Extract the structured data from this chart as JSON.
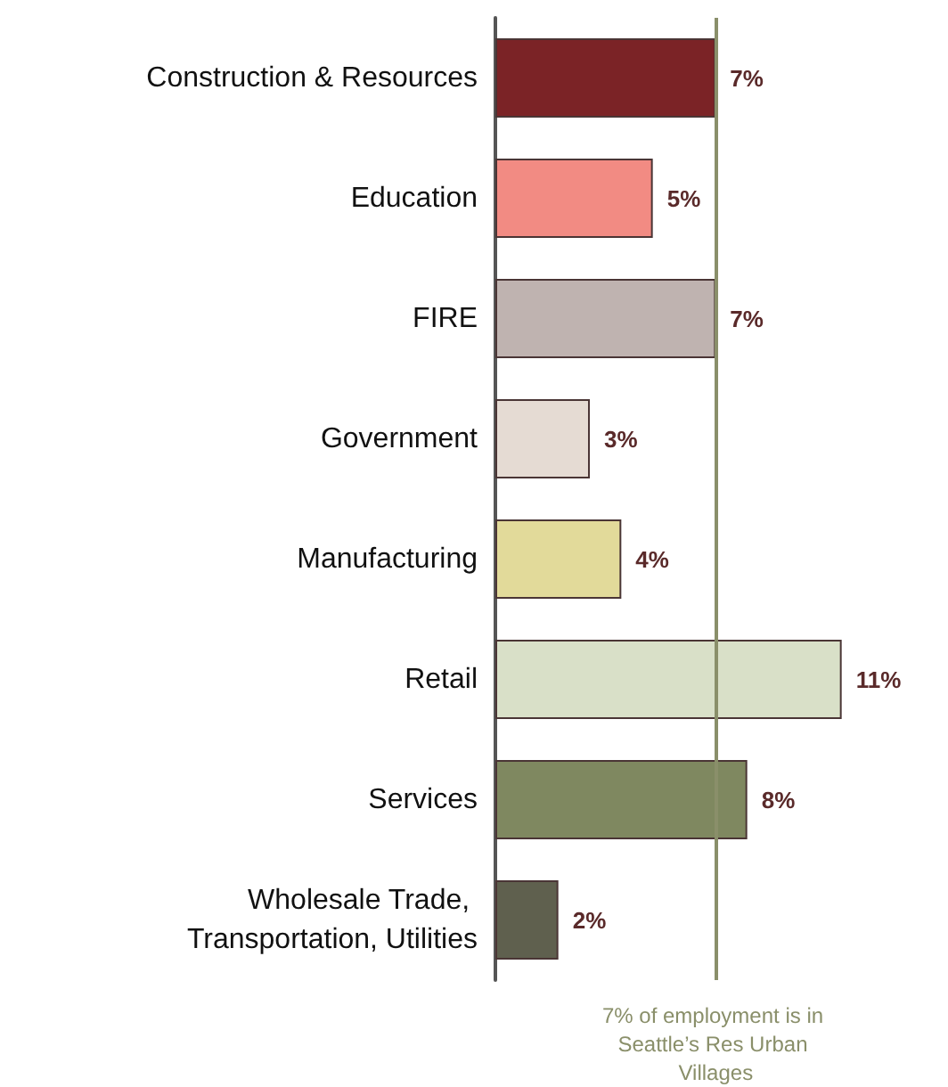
{
  "chart_data": {
    "type": "bar",
    "orientation": "horizontal",
    "categories": [
      "Construction & Resources",
      "Education",
      "FIRE",
      "Government",
      "Manufacturing",
      "Retail",
      "Services",
      "Wholesale Trade, Transportation, Utilities"
    ],
    "values": [
      7,
      5,
      7,
      3,
      4,
      11,
      8,
      2
    ],
    "colors": [
      "#7b2326",
      "#f28b83",
      "#bfb3b0",
      "#e5dbd3",
      "#e2da9a",
      "#d9e0c8",
      "#7f8860",
      "#5f604e"
    ],
    "value_labels": [
      "7%",
      "5%",
      "7%",
      "3%",
      "4%",
      "11%",
      "8%",
      "2%"
    ],
    "tick_labels": "y",
    "ref_lines": [
      {
        "axis": "x",
        "value": 7,
        "label": "7% of employment is in Seattle’s Res Urban Villages",
        "color": "#8a8f6a"
      }
    ]
  }
}
